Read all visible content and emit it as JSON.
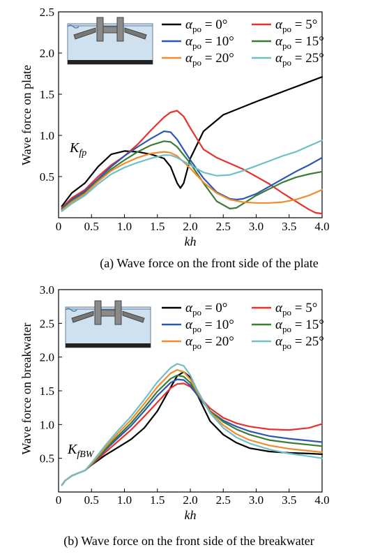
{
  "chart_data": [
    {
      "type": "line",
      "caption": "(a) Wave force on the front side of the plate",
      "xlabel": "kh",
      "ylabel": "Wave force on plate",
      "annotation": {
        "main": "K",
        "sub": "fp"
      },
      "xlim": [
        0,
        4.0
      ],
      "ylim": [
        0,
        2.5
      ],
      "xticks": [
        "0",
        "0.5",
        "1.0",
        "1.5",
        "2.0",
        "2.5",
        "3.0",
        "3.5",
        "4.0"
      ],
      "yticks": [
        "0.5",
        "1.0",
        "1.5",
        "2.0",
        "2.5"
      ],
      "series": [
        {
          "name": "0°",
          "color": "#000000",
          "x": [
            0.05,
            0.2,
            0.4,
            0.6,
            0.8,
            1.0,
            1.2,
            1.4,
            1.6,
            1.7,
            1.8,
            1.85,
            1.9,
            2.0,
            2.2,
            2.5,
            3.0,
            3.5,
            4.0
          ],
          "y": [
            0.14,
            0.3,
            0.42,
            0.62,
            0.77,
            0.81,
            0.8,
            0.77,
            0.72,
            0.62,
            0.42,
            0.36,
            0.42,
            0.72,
            1.05,
            1.25,
            1.41,
            1.56,
            1.71
          ]
        },
        {
          "name": "5°",
          "color": "#e8312c",
          "x": [
            0.05,
            0.2,
            0.4,
            0.6,
            0.8,
            1.0,
            1.2,
            1.4,
            1.6,
            1.7,
            1.8,
            1.9,
            2.0,
            2.2,
            2.4,
            2.6,
            2.8,
            3.0,
            3.2,
            3.4,
            3.6,
            3.8,
            3.9,
            4.0
          ],
          "y": [
            0.12,
            0.24,
            0.34,
            0.5,
            0.64,
            0.75,
            0.89,
            1.06,
            1.22,
            1.28,
            1.3,
            1.23,
            1.09,
            0.83,
            0.73,
            0.66,
            0.59,
            0.5,
            0.41,
            0.3,
            0.2,
            0.1,
            0.06,
            0.05
          ]
        },
        {
          "name": "10°",
          "color": "#2c57b3",
          "x": [
            0.05,
            0.2,
            0.4,
            0.6,
            0.8,
            1.0,
            1.2,
            1.4,
            1.6,
            1.7,
            1.8,
            2.0,
            2.2,
            2.4,
            2.6,
            2.7,
            2.8,
            3.0,
            3.2,
            3.4,
            3.6,
            3.8,
            4.0
          ],
          "y": [
            0.11,
            0.22,
            0.32,
            0.47,
            0.62,
            0.75,
            0.86,
            0.96,
            1.05,
            1.04,
            0.95,
            0.7,
            0.48,
            0.31,
            0.23,
            0.22,
            0.23,
            0.29,
            0.38,
            0.47,
            0.56,
            0.64,
            0.73
          ]
        },
        {
          "name": "15°",
          "color": "#3b7d33",
          "x": [
            0.05,
            0.2,
            0.4,
            0.6,
            0.8,
            1.0,
            1.2,
            1.4,
            1.6,
            1.7,
            1.8,
            2.0,
            2.2,
            2.4,
            2.6,
            2.7,
            2.8,
            3.0,
            3.2,
            3.4,
            3.6,
            3.8,
            4.0
          ],
          "y": [
            0.1,
            0.2,
            0.3,
            0.45,
            0.59,
            0.7,
            0.8,
            0.88,
            0.93,
            0.92,
            0.86,
            0.66,
            0.42,
            0.2,
            0.11,
            0.12,
            0.17,
            0.27,
            0.35,
            0.43,
            0.49,
            0.53,
            0.56
          ]
        },
        {
          "name": "20°",
          "color": "#f28a2e",
          "x": [
            0.05,
            0.2,
            0.4,
            0.6,
            0.8,
            1.0,
            1.2,
            1.4,
            1.6,
            1.7,
            1.8,
            2.0,
            2.2,
            2.4,
            2.6,
            2.8,
            3.0,
            3.2,
            3.4,
            3.6,
            3.8,
            4.0
          ],
          "y": [
            0.09,
            0.19,
            0.29,
            0.44,
            0.57,
            0.66,
            0.73,
            0.78,
            0.8,
            0.79,
            0.75,
            0.6,
            0.43,
            0.3,
            0.22,
            0.19,
            0.18,
            0.18,
            0.19,
            0.22,
            0.27,
            0.34
          ]
        },
        {
          "name": "25°",
          "color": "#6fbfc6",
          "x": [
            0.05,
            0.2,
            0.4,
            0.6,
            0.8,
            1.0,
            1.2,
            1.4,
            1.6,
            1.7,
            1.8,
            2.0,
            2.2,
            2.4,
            2.6,
            2.8,
            3.0,
            3.2,
            3.4,
            3.6,
            3.8,
            4.0
          ],
          "y": [
            0.08,
            0.17,
            0.27,
            0.41,
            0.53,
            0.61,
            0.67,
            0.72,
            0.76,
            0.76,
            0.73,
            0.64,
            0.55,
            0.51,
            0.52,
            0.57,
            0.63,
            0.69,
            0.75,
            0.8,
            0.87,
            0.94
          ]
        }
      ]
    },
    {
      "type": "line",
      "caption": "(b) Wave force on the front side of the breakwater",
      "xlabel": "kh",
      "ylabel": "Wave force on breakwater",
      "annotation": {
        "main": "K",
        "sub": "fBW"
      },
      "xlim": [
        0,
        4.0
      ],
      "ylim": [
        0,
        3.0
      ],
      "xticks": [
        "0",
        "0.5",
        "1.0",
        "1.5",
        "2.0",
        "2.5",
        "3.0",
        "3.5",
        "4.0"
      ],
      "yticks": [
        "0.5",
        "1.0",
        "1.5",
        "2.0",
        "2.5",
        "3.0"
      ],
      "series": [
        {
          "name": "0°",
          "color": "#000000",
          "x": [
            0.05,
            0.1,
            0.2,
            0.3,
            0.4,
            0.5,
            0.7,
            0.9,
            1.1,
            1.3,
            1.5,
            1.7,
            1.8,
            1.9,
            2.0,
            2.1,
            2.3,
            2.5,
            2.7,
            2.9,
            3.2,
            3.5,
            3.8,
            4.0
          ],
          "y": [
            0.1,
            0.17,
            0.24,
            0.28,
            0.32,
            0.4,
            0.54,
            0.66,
            0.78,
            0.95,
            1.2,
            1.55,
            1.72,
            1.78,
            1.7,
            1.45,
            1.05,
            0.85,
            0.73,
            0.65,
            0.6,
            0.58,
            0.57,
            0.56
          ]
        },
        {
          "name": "5°",
          "color": "#e8312c",
          "x": [
            0.05,
            0.1,
            0.2,
            0.3,
            0.4,
            0.5,
            0.7,
            0.9,
            1.1,
            1.3,
            1.5,
            1.7,
            1.8,
            1.9,
            2.0,
            2.1,
            2.3,
            2.5,
            2.7,
            2.9,
            3.2,
            3.5,
            3.8,
            4.0
          ],
          "y": [
            0.1,
            0.17,
            0.24,
            0.28,
            0.32,
            0.4,
            0.58,
            0.75,
            0.92,
            1.12,
            1.33,
            1.54,
            1.6,
            1.61,
            1.56,
            1.45,
            1.24,
            1.1,
            1.02,
            0.97,
            0.93,
            0.92,
            0.95,
            1.01
          ]
        },
        {
          "name": "10°",
          "color": "#2c57b3",
          "x": [
            0.05,
            0.1,
            0.2,
            0.3,
            0.4,
            0.5,
            0.7,
            0.9,
            1.1,
            1.3,
            1.5,
            1.7,
            1.8,
            1.9,
            2.0,
            2.1,
            2.3,
            2.5,
            2.7,
            2.9,
            3.2,
            3.5,
            3.8,
            4.0
          ],
          "y": [
            0.1,
            0.17,
            0.24,
            0.28,
            0.32,
            0.41,
            0.61,
            0.8,
            0.98,
            1.2,
            1.43,
            1.62,
            1.67,
            1.66,
            1.58,
            1.44,
            1.2,
            1.06,
            0.97,
            0.9,
            0.83,
            0.79,
            0.76,
            0.74
          ]
        },
        {
          "name": "15°",
          "color": "#3b7d33",
          "x": [
            0.05,
            0.1,
            0.2,
            0.3,
            0.4,
            0.5,
            0.7,
            0.9,
            1.1,
            1.3,
            1.5,
            1.7,
            1.8,
            1.9,
            2.0,
            2.1,
            2.3,
            2.5,
            2.7,
            2.9,
            3.2,
            3.5,
            3.8,
            4.0
          ],
          "y": [
            0.1,
            0.17,
            0.24,
            0.28,
            0.32,
            0.41,
            0.63,
            0.83,
            1.02,
            1.25,
            1.49,
            1.68,
            1.73,
            1.71,
            1.62,
            1.47,
            1.2,
            1.04,
            0.93,
            0.85,
            0.77,
            0.73,
            0.7,
            0.68
          ]
        },
        {
          "name": "20°",
          "color": "#f28a2e",
          "x": [
            0.05,
            0.1,
            0.2,
            0.3,
            0.4,
            0.5,
            0.7,
            0.9,
            1.1,
            1.3,
            1.5,
            1.7,
            1.8,
            1.9,
            2.0,
            2.1,
            2.3,
            2.5,
            2.7,
            2.9,
            3.2,
            3.5,
            3.8,
            4.0
          ],
          "y": [
            0.1,
            0.17,
            0.24,
            0.28,
            0.32,
            0.42,
            0.65,
            0.87,
            1.07,
            1.31,
            1.56,
            1.76,
            1.81,
            1.78,
            1.67,
            1.49,
            1.18,
            0.99,
            0.86,
            0.77,
            0.69,
            0.64,
            0.61,
            0.59
          ]
        },
        {
          "name": "25°",
          "color": "#6fbfc6",
          "x": [
            0.05,
            0.1,
            0.2,
            0.3,
            0.4,
            0.5,
            0.7,
            0.9,
            1.1,
            1.3,
            1.5,
            1.7,
            1.8,
            1.9,
            2.0,
            2.1,
            2.3,
            2.5,
            2.7,
            2.9,
            3.2,
            3.5,
            3.8,
            4.0
          ],
          "y": [
            0.1,
            0.17,
            0.24,
            0.28,
            0.32,
            0.43,
            0.68,
            0.91,
            1.12,
            1.37,
            1.63,
            1.84,
            1.9,
            1.87,
            1.73,
            1.52,
            1.17,
            0.95,
            0.81,
            0.72,
            0.63,
            0.57,
            0.53,
            0.5
          ]
        }
      ]
    }
  ]
}
